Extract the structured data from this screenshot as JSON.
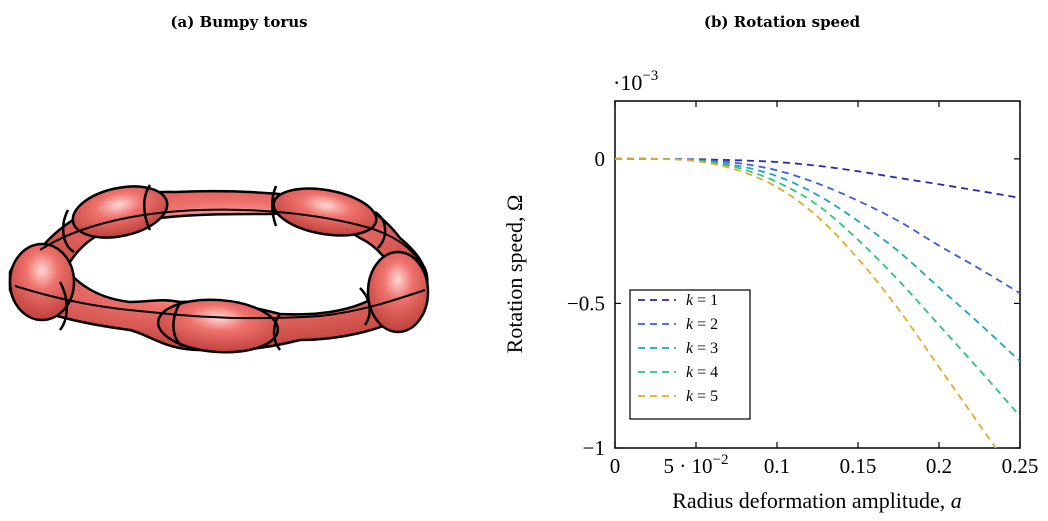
{
  "panel_a": {
    "caption": "(a) Bumpy torus",
    "torus_color": "#e8615c",
    "outline_color": "#000000"
  },
  "chart_data": {
    "type": "line",
    "title": "(b) Rotation speed",
    "xlabel": "Radius deformation amplitude,",
    "xlabel_symbol": "a",
    "ylabel": "Rotation speed, Ω",
    "y_multiplier": "·10",
    "y_multiplier_exp": "−3",
    "xlim": [
      0,
      0.25
    ],
    "ylim": [
      -1,
      0.2
    ],
    "x_ticks": [
      {
        "value": 0,
        "label": "0"
      },
      {
        "value": 0.05,
        "label": "5 · 10",
        "exp": "−2"
      },
      {
        "value": 0.1,
        "label": "0.1"
      },
      {
        "value": 0.15,
        "label": "0.15"
      },
      {
        "value": 0.2,
        "label": "0.2"
      },
      {
        "value": 0.25,
        "label": "0.25"
      }
    ],
    "y_ticks": [
      {
        "value": 0,
        "label": "0"
      },
      {
        "value": -0.5,
        "label": "−0.5"
      },
      {
        "value": -1,
        "label": "−1"
      }
    ],
    "x": [
      0,
      0.025,
      0.05,
      0.075,
      0.1,
      0.125,
      0.15,
      0.175,
      0.2,
      0.225,
      0.25
    ],
    "series": [
      {
        "name": "k = 1",
        "symbol": "k",
        "value_text": "= 1",
        "color": "#2a2ab0",
        "values": [
          0,
          -0.0001,
          -0.0015,
          -0.005,
          -0.011,
          -0.024,
          -0.043,
          -0.066,
          -0.088,
          -0.111,
          -0.135
        ]
      },
      {
        "name": "k = 2",
        "symbol": "k",
        "value_text": "= 2",
        "color": "#3f5be6",
        "values": [
          0,
          -0.0001,
          -0.003,
          -0.014,
          -0.04,
          -0.085,
          -0.145,
          -0.215,
          -0.3,
          -0.38,
          -0.465
        ]
      },
      {
        "name": "k = 3",
        "symbol": "k",
        "value_text": "= 3",
        "color": "#1aa6c6",
        "values": [
          0,
          -0.0002,
          -0.005,
          -0.023,
          -0.06,
          -0.125,
          -0.215,
          -0.32,
          -0.445,
          -0.57,
          -0.7
        ]
      },
      {
        "name": "k = 4",
        "symbol": "k",
        "value_text": "= 4",
        "color": "#2ec57d",
        "values": [
          0,
          -0.0002,
          -0.006,
          -0.03,
          -0.08,
          -0.16,
          -0.28,
          -0.42,
          -0.575,
          -0.73,
          -0.89
        ]
      },
      {
        "name": "k = 5",
        "symbol": "k",
        "value_text": "= 5",
        "color": "#e6aa2a",
        "values": [
          0,
          -0.0003,
          -0.008,
          -0.038,
          -0.098,
          -0.2,
          -0.345,
          -0.52,
          -0.72,
          -0.92,
          -1.12
        ]
      }
    ],
    "legend_position": "bottom-left",
    "grid": false,
    "line_style": "dashed"
  }
}
